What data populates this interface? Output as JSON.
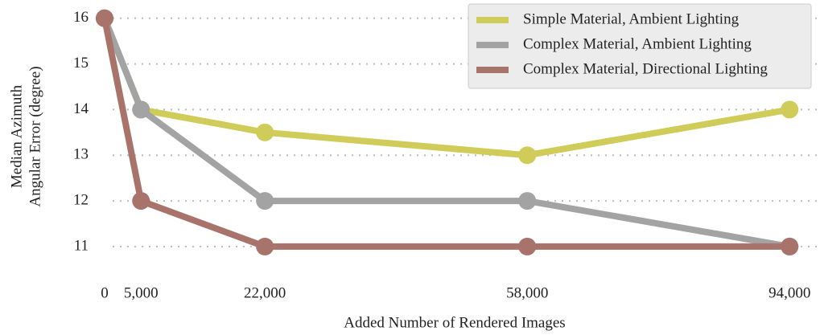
{
  "chart_data": {
    "type": "line",
    "xlabel": "Added Number of Rendered Images",
    "ylabel": [
      "Median Azimuth",
      "Angular Error (degree)"
    ],
    "x": [
      0,
      5000,
      22000,
      58000,
      94000
    ],
    "series": [
      {
        "name": "Simple Material, Ambient Lighting",
        "color": "#cfcc5a",
        "values": [
          16,
          14,
          13.5,
          13,
          14
        ]
      },
      {
        "name": "Complex Material, Ambient Lighting",
        "color": "#a3a3a3",
        "values": [
          16,
          14,
          12,
          12,
          11
        ]
      },
      {
        "name": "Complex Material, Directional Lighting",
        "color": "#a8736a",
        "values": [
          16,
          12,
          11,
          11,
          11
        ]
      }
    ],
    "xlim": [
      -3860,
      97400
    ],
    "xticks": [
      0,
      {
        "value": 5000,
        "label": "5,000"
      },
      {
        "value": 22000,
        "label": "22,000"
      },
      {
        "value": 58000,
        "label": "58,000"
      },
      {
        "value": 94000,
        "label": "94,000"
      }
    ],
    "ylim": [
      10.33,
      16.4
    ],
    "yticks": [
      11,
      12,
      13,
      14,
      15,
      16
    ],
    "grid": true,
    "legend": "upper right"
  }
}
